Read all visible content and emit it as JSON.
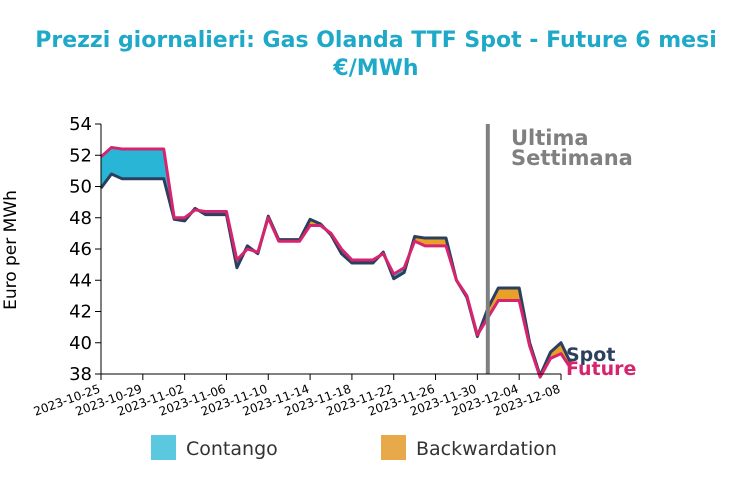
{
  "chart_data": {
    "type": "area",
    "title_line1": "Prezzi giornalieri: Gas Olanda TTF Spot - Future 6 mesi",
    "title_line2": "€/MWh",
    "ylabel": "Euro per MWh",
    "xlabel": "",
    "ylim": [
      38,
      54
    ],
    "yticks": [
      38,
      40,
      42,
      44,
      46,
      48,
      50,
      52,
      54
    ],
    "xlim": [
      "2023-10-25",
      "2023-12-08"
    ],
    "xticks": [
      "2023-10-25",
      "2023-10-29",
      "2023-11-02",
      "2023-11-06",
      "2023-11-10",
      "2023-11-14",
      "2023-11-18",
      "2023-11-22",
      "2023-11-26",
      "2023-11-30",
      "2023-12-04",
      "2023-12-08"
    ],
    "grid": false,
    "annotation": {
      "line1": "Ultima",
      "line2": "Settimana",
      "date": "2023-12-01",
      "color": "#808080"
    },
    "legend": {
      "position": "bottom",
      "items": [
        {
          "label": "Contango",
          "color": "#5bc8e0"
        },
        {
          "label": "Backwardation",
          "color": "#e8a94a"
        }
      ]
    },
    "fill_colors": {
      "contango": "#29b6d6",
      "backwardation": "#e8a028"
    },
    "series": [
      {
        "name": "Spot",
        "color": "#2b3f5f",
        "points": [
          [
            "2023-10-25",
            49.9
          ],
          [
            "2023-10-26",
            50.8
          ],
          [
            "2023-10-27",
            50.5
          ],
          [
            "2023-10-28",
            50.5
          ],
          [
            "2023-10-29",
            50.5
          ],
          [
            "2023-10-30",
            50.5
          ],
          [
            "2023-10-31",
            50.5
          ],
          [
            "2023-11-01",
            47.9
          ],
          [
            "2023-11-02",
            47.8
          ],
          [
            "2023-11-03",
            48.6
          ],
          [
            "2023-11-04",
            48.2
          ],
          [
            "2023-11-05",
            48.2
          ],
          [
            "2023-11-06",
            48.2
          ],
          [
            "2023-11-07",
            44.8
          ],
          [
            "2023-11-08",
            46.2
          ],
          [
            "2023-11-09",
            45.7
          ],
          [
            "2023-11-10",
            48.1
          ],
          [
            "2023-11-11",
            46.6
          ],
          [
            "2023-11-12",
            46.6
          ],
          [
            "2023-11-13",
            46.6
          ],
          [
            "2023-11-14",
            47.9
          ],
          [
            "2023-11-15",
            47.6
          ],
          [
            "2023-11-16",
            46.9
          ],
          [
            "2023-11-17",
            45.7
          ],
          [
            "2023-11-18",
            45.1
          ],
          [
            "2023-11-19",
            45.1
          ],
          [
            "2023-11-20",
            45.1
          ],
          [
            "2023-11-21",
            45.8
          ],
          [
            "2023-11-22",
            44.1
          ],
          [
            "2023-11-23",
            44.5
          ],
          [
            "2023-11-24",
            46.8
          ],
          [
            "2023-11-25",
            46.7
          ],
          [
            "2023-11-26",
            46.7
          ],
          [
            "2023-11-27",
            46.7
          ],
          [
            "2023-11-28",
            44.0
          ],
          [
            "2023-11-29",
            42.9
          ],
          [
            "2023-11-30",
            40.4
          ],
          [
            "2023-12-01",
            42.2
          ],
          [
            "2023-12-02",
            43.5
          ],
          [
            "2023-12-03",
            43.5
          ],
          [
            "2023-12-04",
            43.5
          ],
          [
            "2023-12-05",
            40.0
          ],
          [
            "2023-12-06",
            37.9
          ],
          [
            "2023-12-07",
            39.4
          ],
          [
            "2023-12-08",
            40.0
          ],
          [
            "2023-12-09",
            38.6
          ]
        ]
      },
      {
        "name": "Future",
        "color": "#d6246e",
        "points": [
          [
            "2023-10-25",
            51.9
          ],
          [
            "2023-10-26",
            52.5
          ],
          [
            "2023-10-27",
            52.4
          ],
          [
            "2023-10-28",
            52.4
          ],
          [
            "2023-10-29",
            52.4
          ],
          [
            "2023-10-30",
            52.4
          ],
          [
            "2023-10-31",
            52.4
          ],
          [
            "2023-11-01",
            48.0
          ],
          [
            "2023-11-02",
            48.0
          ],
          [
            "2023-11-03",
            48.5
          ],
          [
            "2023-11-04",
            48.4
          ],
          [
            "2023-11-05",
            48.4
          ],
          [
            "2023-11-06",
            48.4
          ],
          [
            "2023-11-07",
            45.3
          ],
          [
            "2023-11-08",
            46.0
          ],
          [
            "2023-11-09",
            45.8
          ],
          [
            "2023-11-10",
            48.0
          ],
          [
            "2023-11-11",
            46.5
          ],
          [
            "2023-11-12",
            46.5
          ],
          [
            "2023-11-13",
            46.5
          ],
          [
            "2023-11-14",
            47.5
          ],
          [
            "2023-11-15",
            47.5
          ],
          [
            "2023-11-16",
            47.0
          ],
          [
            "2023-11-17",
            46.0
          ],
          [
            "2023-11-18",
            45.3
          ],
          [
            "2023-11-19",
            45.3
          ],
          [
            "2023-11-20",
            45.3
          ],
          [
            "2023-11-21",
            45.7
          ],
          [
            "2023-11-22",
            44.4
          ],
          [
            "2023-11-23",
            44.8
          ],
          [
            "2023-11-24",
            46.5
          ],
          [
            "2023-11-25",
            46.2
          ],
          [
            "2023-11-26",
            46.2
          ],
          [
            "2023-11-27",
            46.2
          ],
          [
            "2023-11-28",
            44.0
          ],
          [
            "2023-11-29",
            43.0
          ],
          [
            "2023-11-30",
            40.5
          ],
          [
            "2023-12-01",
            41.6
          ],
          [
            "2023-12-02",
            42.7
          ],
          [
            "2023-12-03",
            42.7
          ],
          [
            "2023-12-04",
            42.7
          ],
          [
            "2023-12-05",
            39.8
          ],
          [
            "2023-12-06",
            37.8
          ],
          [
            "2023-12-07",
            39.0
          ],
          [
            "2023-12-08",
            39.3
          ],
          [
            "2023-12-09",
            38.3
          ]
        ]
      }
    ]
  }
}
